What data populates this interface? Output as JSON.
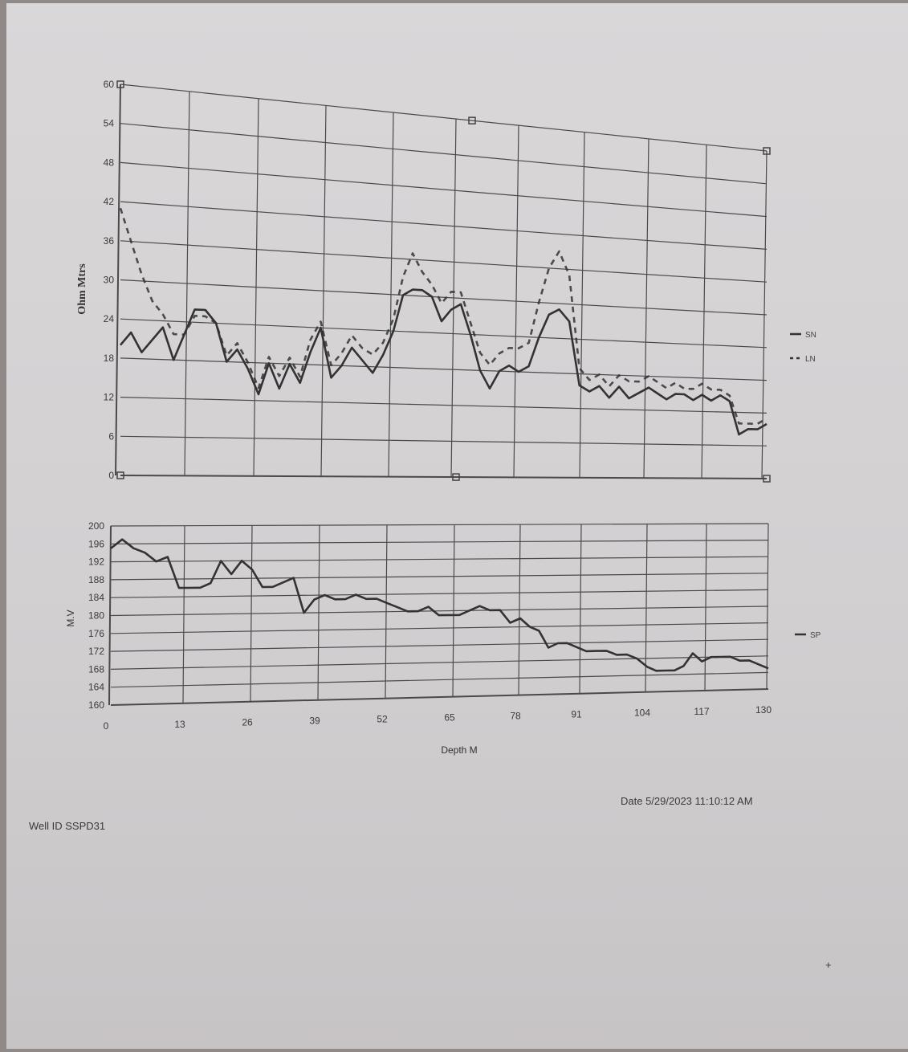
{
  "chart_data": [
    {
      "type": "line",
      "ylabel": "Ohm Mtrs",
      "ylim": [
        0,
        60
      ],
      "yticks": [
        "60",
        "54",
        "48",
        "42",
        "36",
        "30",
        "24",
        "18",
        "12",
        "6",
        "0"
      ],
      "xlim": [
        0,
        130
      ],
      "grid": true,
      "legend_position": "right",
      "series": [
        {
          "name": "SN",
          "style": "solid",
          "x": [
            0,
            2,
            4,
            6,
            8,
            10,
            12,
            14,
            16,
            18,
            20,
            22,
            24,
            26,
            28,
            30,
            32,
            34,
            36,
            38,
            40,
            42,
            44,
            46,
            48,
            50,
            52,
            54,
            56,
            58,
            60,
            62,
            64,
            66,
            68,
            70,
            72,
            74,
            76,
            78,
            80,
            82,
            84,
            86,
            88,
            90,
            92,
            94,
            96,
            98,
            100,
            102,
            104,
            106,
            108,
            110,
            112,
            114,
            116,
            118,
            120,
            122,
            124,
            126,
            128,
            130
          ],
          "values": [
            20,
            22,
            19,
            21,
            23,
            18,
            22,
            26,
            26,
            24,
            18,
            20,
            17,
            13,
            18,
            14,
            18,
            15,
            20,
            24,
            16,
            18,
            21,
            19,
            17,
            20,
            24,
            30,
            31,
            31,
            30,
            26,
            28,
            29,
            24,
            18,
            15,
            18,
            19,
            18,
            19,
            24,
            28,
            29,
            27,
            16,
            15,
            16,
            14,
            16,
            14,
            15,
            16,
            15,
            14,
            15,
            15,
            14,
            15,
            14,
            15,
            14,
            8,
            9,
            9,
            10
          ]
        },
        {
          "name": "LN",
          "style": "dashed",
          "x": [
            0,
            2,
            4,
            6,
            8,
            10,
            12,
            14,
            16,
            18,
            20,
            22,
            24,
            26,
            28,
            30,
            32,
            34,
            36,
            38,
            40,
            42,
            44,
            46,
            48,
            50,
            52,
            54,
            56,
            58,
            60,
            62,
            64,
            66,
            68,
            70,
            72,
            74,
            76,
            78,
            80,
            82,
            84,
            86,
            88,
            90,
            92,
            94,
            96,
            98,
            100,
            102,
            104,
            106,
            108,
            110,
            112,
            114,
            116,
            118,
            120,
            122,
            124,
            126,
            128,
            130
          ],
          "values": [
            41,
            36,
            31,
            27,
            25,
            22,
            22,
            25,
            25,
            24,
            19,
            21,
            18,
            14,
            19,
            16,
            19,
            16,
            22,
            25,
            18,
            20,
            23,
            21,
            20,
            22,
            26,
            33,
            37,
            34,
            32,
            29,
            31,
            31,
            26,
            21,
            19,
            21,
            22,
            22,
            23,
            30,
            36,
            39,
            35,
            19,
            17,
            18,
            16,
            18,
            17,
            17,
            18,
            17,
            16,
            17,
            16,
            16,
            17,
            16,
            16,
            15,
            10,
            10,
            10,
            11
          ]
        }
      ]
    },
    {
      "type": "line",
      "ylabel": "M.V",
      "ylim": [
        160,
        200
      ],
      "yticks": [
        "200",
        "196",
        "192",
        "188",
        "184",
        "180",
        "176",
        "172",
        "168",
        "164",
        "160"
      ],
      "xlabel": "Depth  M",
      "xlim": [
        0,
        130
      ],
      "xticks": [
        "0",
        "13",
        "26",
        "39",
        "52",
        "65",
        "78",
        "91",
        "104",
        "117",
        "130"
      ],
      "grid": true,
      "legend_position": "right",
      "series": [
        {
          "name": "SP",
          "style": "solid",
          "x": [
            0,
            2,
            4,
            6,
            8,
            10,
            12,
            14,
            16,
            18,
            20,
            22,
            24,
            26,
            28,
            30,
            32,
            34,
            36,
            38,
            40,
            42,
            44,
            46,
            48,
            50,
            52,
            54,
            56,
            58,
            60,
            62,
            64,
            66,
            68,
            70,
            72,
            74,
            76,
            78,
            80,
            82,
            84,
            86,
            88,
            90,
            92,
            94,
            96,
            98,
            100,
            102,
            104,
            106,
            108,
            110,
            112,
            114,
            116,
            118,
            120,
            122,
            124,
            126,
            128,
            130
          ],
          "values": [
            195,
            197,
            195,
            194,
            192,
            193,
            186,
            186,
            186,
            187,
            192,
            189,
            192,
            190,
            186,
            186,
            187,
            188,
            180,
            183,
            184,
            183,
            183,
            184,
            183,
            183,
            182,
            181,
            180,
            180,
            181,
            179,
            179,
            179,
            180,
            181,
            180,
            180,
            177,
            178,
            176,
            175,
            171,
            172,
            172,
            171,
            170,
            170,
            170,
            169,
            169,
            168,
            166,
            165,
            165,
            165,
            166,
            169,
            167,
            168,
            168,
            168,
            167,
            167,
            166,
            165
          ]
        }
      ]
    }
  ],
  "footer": {
    "date": "Date  5/29/2023 11:10:12 AM",
    "well_id": "Well ID  SSPD31",
    "corner_mark": "+"
  }
}
